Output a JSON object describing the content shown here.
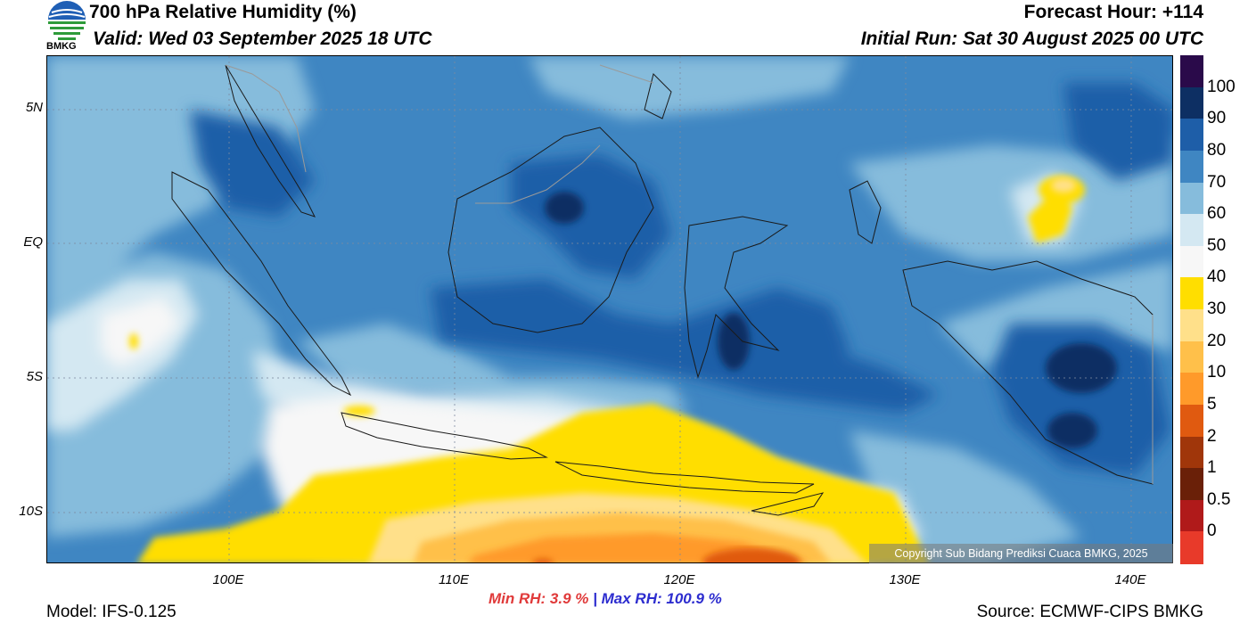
{
  "header": {
    "title": "700 hPa Relative Humidity (%)",
    "valid": "Valid: Wed 03 September 2025 18 UTC",
    "forecast_hour": "Forecast Hour: +114",
    "initial_run": "Initial Run: Sat 30 August 2025 00 UTC"
  },
  "logo": {
    "text": "BMKG",
    "icon": "bmkg-logo-icon"
  },
  "axes": {
    "lat_labels": [
      "5N",
      "EQ",
      "5S",
      "10S"
    ],
    "lon_labels": [
      "100E",
      "110E",
      "120E",
      "130E",
      "140E"
    ]
  },
  "colorbar": {
    "labels": [
      "100",
      "90",
      "80",
      "70",
      "60",
      "50",
      "40",
      "30",
      "20",
      "10",
      "5",
      "2",
      "1",
      "0.5",
      "0"
    ],
    "colors": [
      "#2a0a4a",
      "#0d2f63",
      "#1e5ea8",
      "#3f86c2",
      "#86bcdc",
      "#d4e8f2",
      "#f7f7f7",
      "#ffde00",
      "#ffe08a",
      "#ffc04a",
      "#ff9a2a",
      "#e05a10",
      "#a0360a",
      "#6a2008",
      "#b01a1a",
      "#e83a2a"
    ]
  },
  "stats": {
    "min_rh": "Min RH:   3.9 %",
    "separator": "|",
    "max_rh": "Max RH: 100.9 %"
  },
  "footer": {
    "model": "Model: IFS-0.125",
    "source": "Source: ECMWF-CIPS BMKG",
    "copyright": "Copyright Sub Bidang Prediksi Cuaca BMKG, 2025"
  }
}
